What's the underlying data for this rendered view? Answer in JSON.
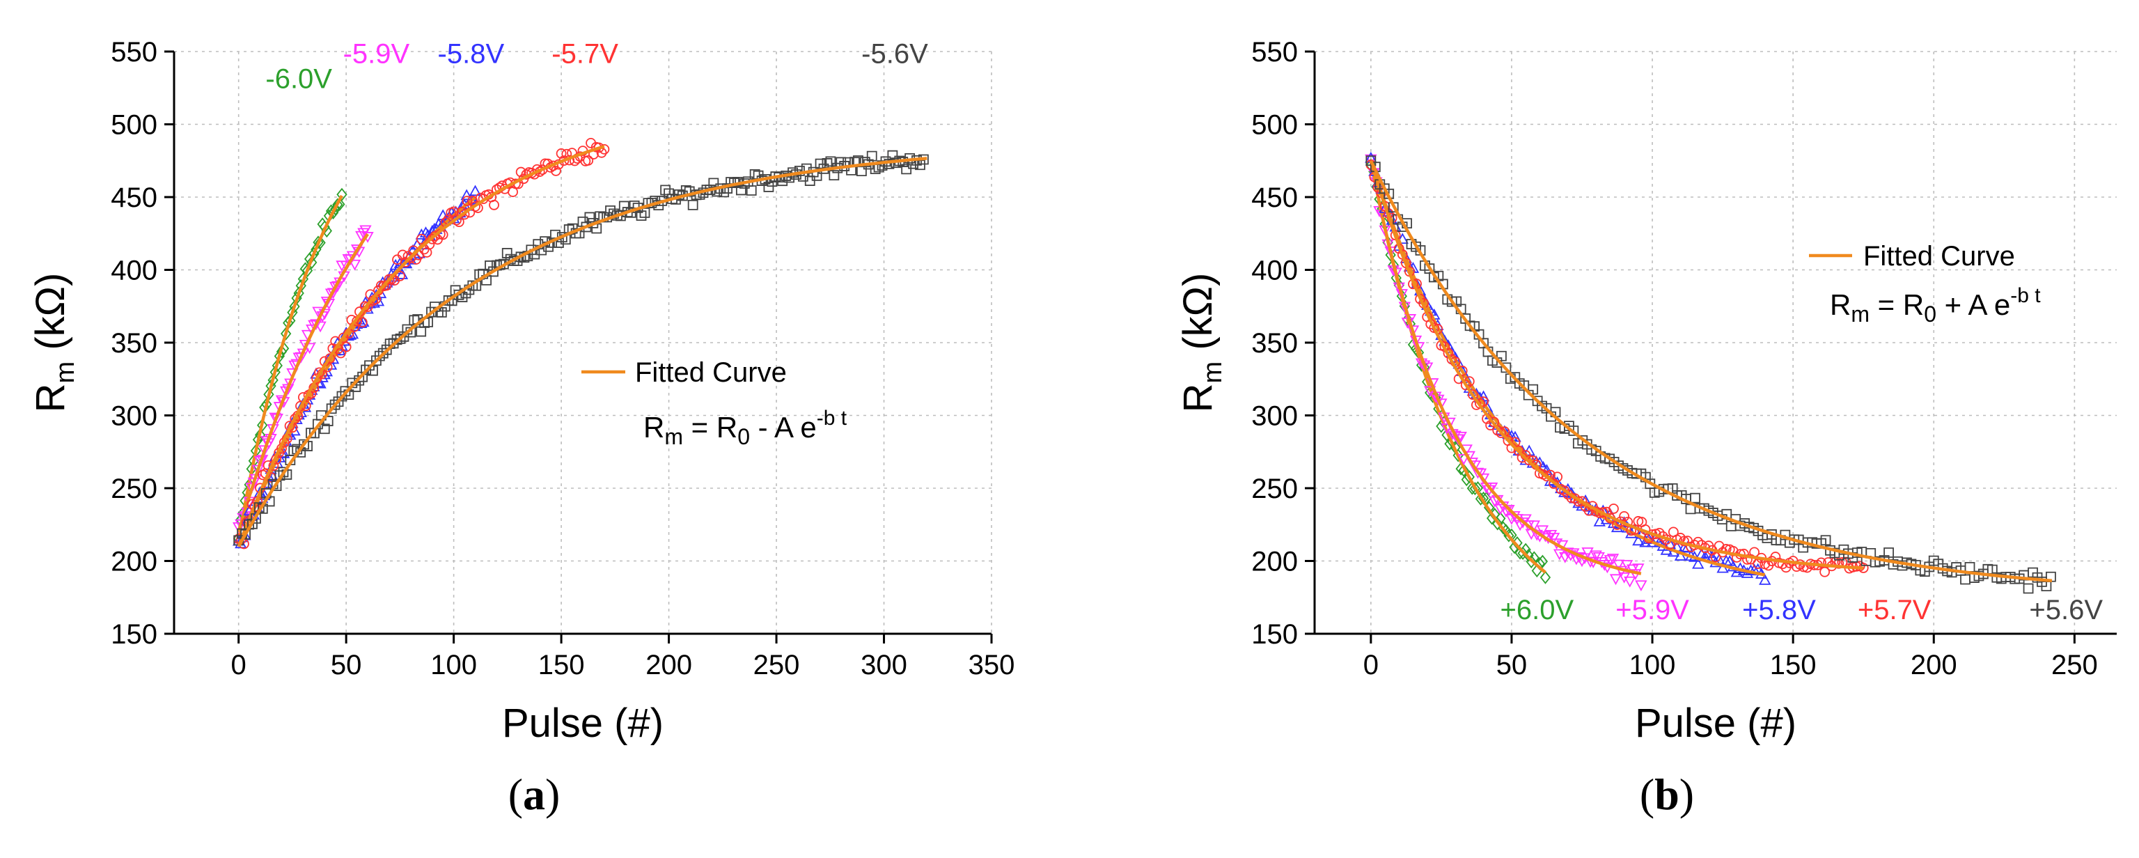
{
  "figure": {
    "colors": {
      "fit": "#f08a1e",
      "grid": "#bdbdbd",
      "series": {
        "6.0": "#2ca02c",
        "5.9": "#ff33ff",
        "5.8": "#3333ff",
        "5.7": "#ff3333",
        "5.6": "#444444"
      }
    }
  },
  "chart_data": [
    {
      "type": "scatter",
      "panel_label": "(a)",
      "xlabel": "Pulse (#)",
      "ylabel": {
        "main": "R",
        "sub": "m",
        "unit": " (kΩ)"
      },
      "xlim": [
        -30,
        350
      ],
      "ylim": [
        150,
        550
      ],
      "xticks": [
        0,
        50,
        100,
        150,
        200,
        250,
        300,
        350
      ],
      "yticks": [
        150,
        200,
        250,
        300,
        350,
        400,
        450,
        500,
        550
      ],
      "grid": true,
      "legend": {
        "position": "center-right",
        "entry": "Fitted Curve"
      },
      "equation": {
        "lhs": "R",
        "lhs_sub": "m",
        "mid": " = R",
        "mid_sub": "0",
        "rest": " - A e",
        "sup": "-b t"
      },
      "series": [
        {
          "name": "-6.0V",
          "key": "6.0",
          "marker": "diamond",
          "n": 48,
          "R0": 560,
          "A": 345,
          "b": 0.024,
          "noise": 9,
          "label_at": [
            28,
            525
          ]
        },
        {
          "name": "-5.9V",
          "key": "5.9",
          "marker": "triangle-down",
          "n": 60,
          "R0": 580,
          "A": 360,
          "b": 0.014,
          "noise": 10,
          "label_at": [
            64,
            542
          ]
        },
        {
          "name": "-5.8V",
          "key": "5.8",
          "marker": "triangle-up",
          "n": 110,
          "R0": 560,
          "A": 350,
          "b": 0.0105,
          "noise": 9,
          "label_at": [
            108,
            542
          ]
        },
        {
          "name": "-5.7V",
          "key": "5.7",
          "marker": "circle",
          "n": 170,
          "R0": 520,
          "A": 310,
          "b": 0.0128,
          "noise": 10,
          "label_at": [
            161,
            542
          ]
        },
        {
          "name": "-5.6V",
          "key": "5.6",
          "marker": "square",
          "n": 320,
          "R0": 490,
          "A": 280,
          "b": 0.0095,
          "noise": 9,
          "label_at": [
            305,
            542
          ]
        }
      ]
    },
    {
      "type": "scatter",
      "panel_label": "(b)",
      "xlabel": "Pulse (#)",
      "ylabel": {
        "main": "R",
        "sub": "m",
        "unit": " (kΩ)"
      },
      "xlim": [
        -20,
        265
      ],
      "ylim": [
        150,
        550
      ],
      "xticks": [
        0,
        50,
        100,
        150,
        200,
        250
      ],
      "yticks": [
        150,
        200,
        250,
        300,
        350,
        400,
        450,
        500,
        550
      ],
      "grid": true,
      "legend": {
        "position": "top-right",
        "entry": "Fitted Curve"
      },
      "equation": {
        "lhs": "R",
        "lhs_sub": "m",
        "mid": " = R",
        "mid_sub": "0",
        "rest": " + A e",
        "sup": "-b t"
      },
      "series": [
        {
          "name": "+6.0V",
          "key": "6.0",
          "marker": "diamond",
          "n": 62,
          "R0": 140,
          "A": 335,
          "b": 0.03,
          "noise": 8,
          "label_at": [
            59,
            160
          ]
        },
        {
          "name": "+5.9V",
          "key": "5.9",
          "marker": "triangle-down",
          "n": 96,
          "R0": 180,
          "A": 295,
          "b": 0.034,
          "noise": 9,
          "label_at": [
            100,
            160
          ]
        },
        {
          "name": "+5.8V",
          "key": "5.8",
          "marker": "triangle-up",
          "n": 140,
          "R0": 172,
          "A": 303,
          "b": 0.02,
          "noise": 8,
          "label_at": [
            145,
            160
          ]
        },
        {
          "name": "+5.7V",
          "key": "5.7",
          "marker": "circle",
          "n": 175,
          "R0": 190,
          "A": 285,
          "b": 0.023,
          "noise": 8,
          "label_at": [
            186,
            160
          ]
        },
        {
          "name": "+5.6V",
          "key": "5.6",
          "marker": "square",
          "n": 242,
          "R0": 175,
          "A": 300,
          "b": 0.0135,
          "noise": 8,
          "label_at": [
            247,
            160
          ]
        }
      ]
    }
  ]
}
